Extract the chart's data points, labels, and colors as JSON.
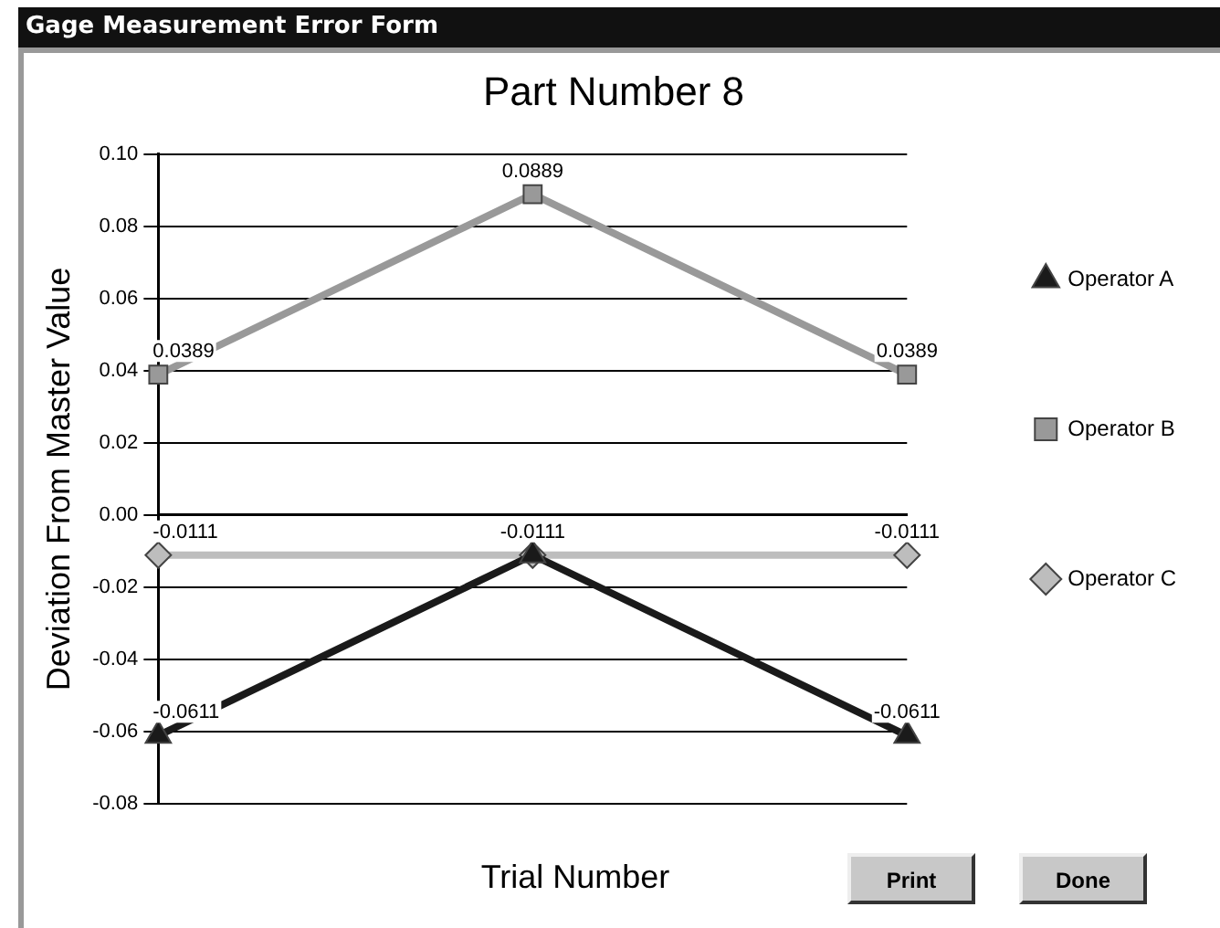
{
  "chart_data": {
    "type": "line",
    "title": "Part Number 8",
    "xlabel": "Trial Number",
    "ylabel": "Deviation From Master Value",
    "annotations": [
      "Gage Measurement Error Form",
      "Print",
      "Done"
    ],
    "categories": [
      null,
      null,
      null
    ],
    "series": [
      {
        "name": "Operator A",
        "color": "#1a1a1a",
        "marker": "triangle",
        "values": [
          -0.0611,
          -0.0111,
          -0.0611
        ],
        "value_labels": [
          "-0.0611",
          null,
          "-0.0611"
        ]
      },
      {
        "name": "Operator B",
        "color": "#999999",
        "marker": "square",
        "values": [
          0.0389,
          0.0889,
          0.0389
        ],
        "value_labels": [
          "0.0389",
          "0.0889",
          "0.0389"
        ]
      },
      {
        "name": "Operator C",
        "color": "#bdbdbd",
        "marker": "diamond",
        "values": [
          -0.0111,
          -0.0111,
          -0.0111
        ],
        "value_labels": [
          "-0.0111",
          "-0.0111",
          "-0.0111"
        ]
      }
    ],
    "ylim": [
      -0.08,
      0.1
    ],
    "yticks": [
      {
        "value": -0.08,
        "label": "-0.08"
      },
      {
        "value": -0.06,
        "label": "-0.06"
      },
      {
        "value": -0.04,
        "label": "-0.04"
      },
      {
        "value": -0.02,
        "label": "-0.02"
      },
      {
        "value": 0,
        "label": "0.00"
      },
      {
        "value": 0.02,
        "label": "0.02"
      },
      {
        "value": 0.04,
        "label": "0.04"
      },
      {
        "value": 0.06,
        "label": "0.06"
      },
      {
        "value": 0.08,
        "label": "0.08"
      },
      {
        "value": 0.1,
        "label": "0.10"
      }
    ],
    "grid": "y",
    "legend": "right",
    "data_labels": true,
    "line_style": "solid"
  }
}
